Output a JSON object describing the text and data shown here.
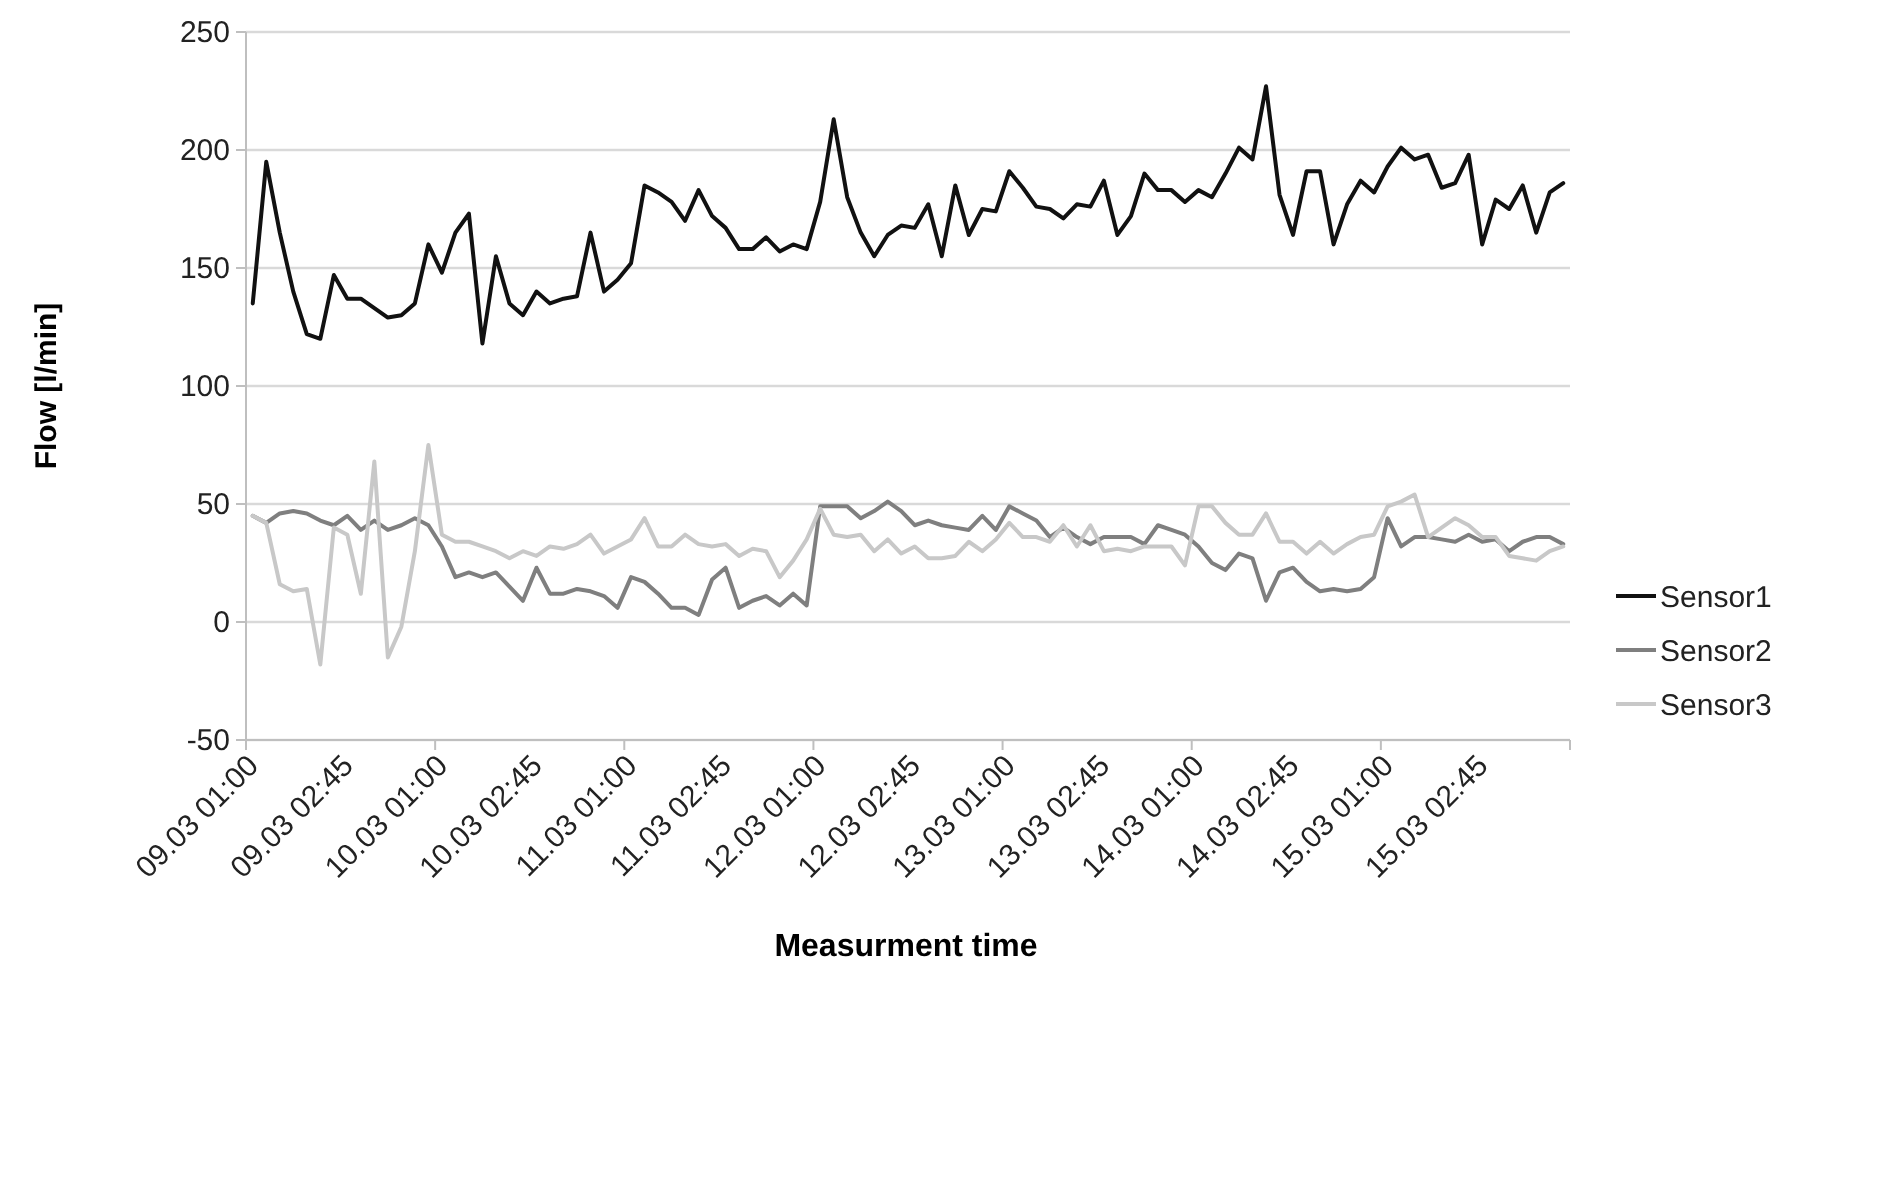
{
  "chart_data": {
    "type": "line",
    "xlabel": "Measurment time",
    "ylabel": "Flow [l/min]",
    "categories": [
      "09.03 01:00",
      null,
      null,
      null,
      null,
      null,
      null,
      "09.03 02:45",
      null,
      null,
      null,
      null,
      null,
      null,
      "10.03 01:00",
      null,
      null,
      null,
      null,
      null,
      null,
      "10.03 02:45",
      null,
      null,
      null,
      null,
      null,
      null,
      "11.03 01:00",
      null,
      null,
      null,
      null,
      null,
      null,
      "11.03 02:45",
      null,
      null,
      null,
      null,
      null,
      null,
      "12.03 01:00",
      null,
      null,
      null,
      null,
      null,
      null,
      "12.03 02:45",
      null,
      null,
      null,
      null,
      null,
      null,
      "13.03 01:00",
      null,
      null,
      null,
      null,
      null,
      null,
      "13.03 02:45",
      null,
      null,
      null,
      null,
      null,
      null,
      "14.03 01:00",
      null,
      null,
      null,
      null,
      null,
      null,
      "14.03 02:45",
      null,
      null,
      null,
      null,
      null,
      null,
      "15.03 01:00",
      null,
      null,
      null,
      null,
      null,
      null,
      "15.03 02:45",
      null,
      null,
      null,
      null,
      null,
      null
    ],
    "series": [
      {
        "name": "Sensor1",
        "color": "#111111",
        "values": [
          135,
          195,
          165,
          140,
          122,
          120,
          147,
          137,
          137,
          133,
          129,
          130,
          135,
          160,
          148,
          165,
          173,
          118,
          155,
          135,
          130,
          140,
          135,
          137,
          138,
          165,
          140,
          145,
          152,
          185,
          182,
          178,
          170,
          183,
          172,
          167,
          158,
          158,
          163,
          157,
          160,
          158,
          178,
          213,
          180,
          165,
          155,
          164,
          168,
          167,
          177,
          155,
          185,
          164,
          175,
          174,
          191,
          184,
          176,
          175,
          171,
          177,
          176,
          187,
          164,
          172,
          190,
          183,
          183,
          178,
          183,
          180,
          190,
          201,
          196,
          227,
          181,
          164,
          191,
          191,
          160,
          177,
          187,
          182,
          193,
          201,
          196,
          198,
          184,
          186,
          198,
          160,
          179,
          175,
          185,
          165,
          182,
          186
        ]
      },
      {
        "name": "Sensor2",
        "color": "#7f7f7f",
        "values": [
          45,
          42,
          46,
          47,
          46,
          43,
          41,
          45,
          39,
          43,
          39,
          41,
          44,
          41,
          32,
          19,
          21,
          19,
          21,
          15,
          9,
          23,
          12,
          12,
          14,
          13,
          11,
          6,
          19,
          17,
          12,
          6,
          6,
          3,
          18,
          23,
          6,
          9,
          11,
          7,
          12,
          7,
          49,
          49,
          49,
          44,
          47,
          51,
          47,
          41,
          43,
          41,
          40,
          39,
          45,
          39,
          49,
          46,
          43,
          36,
          40,
          36,
          33,
          36,
          36,
          36,
          33,
          41,
          39,
          37,
          32,
          25,
          22,
          29,
          27,
          9,
          21,
          23,
          17,
          13,
          14,
          13,
          14,
          19,
          44,
          32,
          36,
          36,
          35,
          34,
          37,
          34,
          35,
          30,
          34,
          36,
          36,
          33
        ]
      },
      {
        "name": "Sensor3",
        "color": "#c8c8c8",
        "values": [
          45,
          42,
          16,
          13,
          14,
          -18,
          40,
          37,
          12,
          68,
          -15,
          -2,
          30,
          75,
          37,
          34,
          34,
          32,
          30,
          27,
          30,
          28,
          32,
          31,
          33,
          37,
          29,
          32,
          35,
          44,
          32,
          32,
          37,
          33,
          32,
          33,
          28,
          31,
          30,
          19,
          26,
          35,
          48,
          37,
          36,
          37,
          30,
          35,
          29,
          32,
          27,
          27,
          28,
          34,
          30,
          35,
          42,
          36,
          36,
          34,
          41,
          32,
          41,
          30,
          31,
          30,
          32,
          32,
          32,
          24,
          49,
          49,
          42,
          37,
          37,
          46,
          34,
          34,
          29,
          34,
          29,
          33,
          36,
          37,
          49,
          51,
          54,
          36,
          40,
          44,
          41,
          36,
          36,
          28,
          27,
          26,
          30,
          32
        ]
      }
    ],
    "ylim": [
      -50,
      250
    ],
    "yticks": [
      -50,
      0,
      50,
      100,
      150,
      200,
      250
    ],
    "grid": "y",
    "legend": "right",
    "line_style": "solid",
    "marker": "none"
  }
}
